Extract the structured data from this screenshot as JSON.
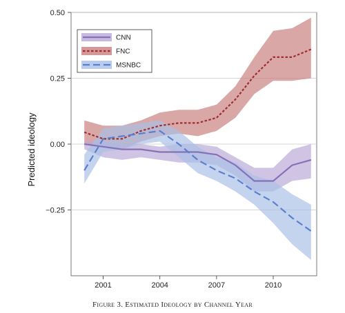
{
  "caption": "Figure 3. Estimated Ideology by Channel Year",
  "chart_data": {
    "type": "line",
    "title": "",
    "xlabel": "",
    "ylabel": "Predicted ideology",
    "xlim": [
      1999.3,
      2012.3
    ],
    "ylim": [
      -0.5,
      0.5
    ],
    "x_ticks": [
      2001,
      2004,
      2007,
      2010
    ],
    "x_tick_labels": [
      "2001",
      "2004",
      "2007",
      "2010"
    ],
    "y_ticks": [
      0.5,
      0.25,
      0.0,
      -0.25
    ],
    "y_tick_labels": [
      "0.50",
      "0.25",
      "0.00",
      "−0.25"
    ],
    "grid": "horizontal",
    "legend_position": "top-left",
    "x": [
      2000,
      2001,
      2002,
      2003,
      2004,
      2005,
      2006,
      2007,
      2008,
      2009,
      2010,
      2011,
      2012
    ],
    "series": [
      {
        "name": "CNN",
        "line_color": "#8471b8",
        "band_color": "#b9a8d8",
        "dash": "solid",
        "values": [
          0.0,
          -0.01,
          -0.02,
          -0.02,
          -0.03,
          -0.03,
          -0.03,
          -0.04,
          -0.08,
          -0.14,
          -0.14,
          -0.08,
          -0.06
        ],
        "upper": [
          0.01,
          0.01,
          0.0,
          0.0,
          -0.01,
          0.0,
          0.0,
          -0.01,
          -0.05,
          -0.09,
          -0.09,
          -0.02,
          0.0
        ],
        "lower": [
          -0.02,
          -0.05,
          -0.06,
          -0.05,
          -0.06,
          -0.07,
          -0.07,
          -0.08,
          -0.12,
          -0.18,
          -0.18,
          -0.14,
          -0.13
        ]
      },
      {
        "name": "FNC",
        "line_color": "#a02c2c",
        "band_color": "#c97e7e",
        "dash": "short",
        "values": [
          0.045,
          0.02,
          0.02,
          0.05,
          0.07,
          0.08,
          0.08,
          0.1,
          0.17,
          0.26,
          0.33,
          0.33,
          0.36
        ],
        "upper": [
          0.09,
          0.07,
          0.07,
          0.09,
          0.12,
          0.13,
          0.13,
          0.15,
          0.22,
          0.33,
          0.43,
          0.44,
          0.48
        ],
        "lower": [
          0.0,
          -0.01,
          -0.02,
          0.01,
          0.03,
          0.04,
          0.03,
          0.05,
          0.1,
          0.19,
          0.24,
          0.24,
          0.25
        ]
      },
      {
        "name": "MSNBC",
        "line_color": "#5b7fcf",
        "band_color": "#a9bfe6",
        "dash": "long",
        "values": [
          -0.1,
          0.02,
          0.03,
          0.04,
          0.05,
          0.0,
          -0.06,
          -0.1,
          -0.13,
          -0.18,
          -0.22,
          -0.28,
          -0.33
        ],
        "upper": [
          -0.04,
          0.06,
          0.07,
          0.08,
          0.09,
          0.05,
          -0.01,
          -0.05,
          -0.07,
          -0.12,
          -0.14,
          -0.19,
          -0.23
        ],
        "lower": [
          -0.15,
          -0.03,
          -0.02,
          0.0,
          0.01,
          -0.05,
          -0.11,
          -0.14,
          -0.18,
          -0.23,
          -0.3,
          -0.38,
          -0.44
        ]
      }
    ]
  }
}
